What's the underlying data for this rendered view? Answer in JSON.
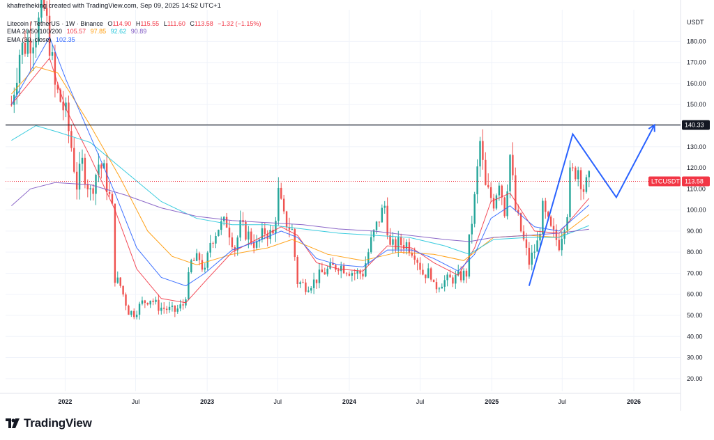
{
  "header": {
    "credit": "khafretheking created with TradingView.com, Sep 09, 2025 14:52 UTC+1",
    "symbol_line": "Litecoin / TetherUS · 1W · Binance",
    "o_label": "O",
    "o_value": "114.90",
    "h_label": "H",
    "h_value": "115.55",
    "l_label": "L",
    "l_value": "111.60",
    "c_label": "C",
    "c_value": "113.58",
    "change": "−1.32 (−1.15%)",
    "ema_label": "EMA 20/50/100/200",
    "ema_values": [
      "105.57",
      "97.85",
      "92.62",
      "90.89"
    ],
    "ema30_label": "EMA (30, close)",
    "ema30_value": "102.35"
  },
  "footer": {
    "brand": "TradingView"
  },
  "colors": {
    "up": "#26a69a",
    "down": "#ef5350",
    "ema20": "#f23645",
    "ema50": "#ff9800",
    "ema100": "#26c6da",
    "ema200": "#7e57c2",
    "ema30": "#2962ff",
    "projection": "#2962ff",
    "level": "#131722",
    "price_line": "#f23645"
  },
  "chart_data": {
    "type": "candlestick",
    "title": "Litecoin / TetherUS · 1W · Binance",
    "unit": "USDT",
    "y_axis_label": "USDT",
    "ylim": [
      14,
      195
    ],
    "y_ticks": [
      20,
      30,
      40,
      50,
      60,
      70,
      80,
      90,
      100,
      110,
      120,
      130,
      140,
      150,
      160,
      170,
      180
    ],
    "xlim": [
      "2021-08-01",
      "2026-05-01"
    ],
    "x_ticks": [
      {
        "label": "2022",
        "date": "2022-01-01"
      },
      {
        "label": "Jul",
        "date": "2022-07-01"
      },
      {
        "label": "2023",
        "date": "2023-01-01"
      },
      {
        "label": "Jul",
        "date": "2023-07-01"
      },
      {
        "label": "2024",
        "date": "2024-01-01"
      },
      {
        "label": "Jul",
        "date": "2024-07-01"
      },
      {
        "label": "2025",
        "date": "2025-01-01"
      },
      {
        "label": "Jul",
        "date": "2025-07-01"
      },
      {
        "label": "2026",
        "date": "2026-01-01"
      }
    ],
    "horizontal_level": {
      "value": 140.33,
      "label": "140.33"
    },
    "last_price": {
      "symbol": "LTCUSDT",
      "value": 113.58,
      "label": "113.58"
    },
    "price_anchors": [
      [
        "2021-08-16",
        150
      ],
      [
        "2021-09-06",
        175
      ],
      [
        "2021-10-18",
        185
      ],
      [
        "2021-11-08",
        195
      ],
      [
        "2021-11-22",
        180
      ],
      [
        "2021-12-06",
        158
      ],
      [
        "2021-12-20",
        152
      ],
      [
        "2022-01-03",
        145
      ],
      [
        "2022-01-17",
        130
      ],
      [
        "2022-01-31",
        112
      ],
      [
        "2022-02-14",
        122
      ],
      [
        "2022-03-07",
        108
      ],
      [
        "2022-03-28",
        122
      ],
      [
        "2022-04-11",
        118
      ],
      [
        "2022-05-02",
        100
      ],
      [
        "2022-05-09",
        68
      ],
      [
        "2022-05-23",
        64
      ],
      [
        "2022-06-13",
        52
      ],
      [
        "2022-06-27",
        51
      ],
      [
        "2022-07-18",
        56
      ],
      [
        "2022-08-08",
        58
      ],
      [
        "2022-08-29",
        54
      ],
      [
        "2022-09-19",
        53
      ],
      [
        "2022-10-10",
        52
      ],
      [
        "2022-10-31",
        55
      ],
      [
        "2022-11-07",
        60
      ],
      [
        "2022-11-21",
        75
      ],
      [
        "2022-12-12",
        77
      ],
      [
        "2022-12-26",
        70
      ],
      [
        "2023-01-09",
        85
      ],
      [
        "2023-01-30",
        92
      ],
      [
        "2023-02-20",
        94
      ],
      [
        "2023-03-13",
        82
      ],
      [
        "2023-03-27",
        92
      ],
      [
        "2023-04-17",
        88
      ],
      [
        "2023-05-08",
        83
      ],
      [
        "2023-05-29",
        90
      ],
      [
        "2023-06-19",
        88
      ],
      [
        "2023-07-03",
        108
      ],
      [
        "2023-07-17",
        96
      ],
      [
        "2023-08-07",
        90
      ],
      [
        "2023-08-21",
        66
      ],
      [
        "2023-09-11",
        64
      ],
      [
        "2023-10-02",
        66
      ],
      [
        "2023-10-23",
        70
      ],
      [
        "2023-11-13",
        72
      ],
      [
        "2023-12-04",
        74
      ],
      [
        "2023-12-25",
        72
      ],
      [
        "2024-01-15",
        70
      ],
      [
        "2024-02-05",
        70
      ],
      [
        "2024-02-26",
        85
      ],
      [
        "2024-03-18",
        96
      ],
      [
        "2024-04-01",
        102
      ],
      [
        "2024-04-15",
        82
      ],
      [
        "2024-05-06",
        84
      ],
      [
        "2024-05-27",
        84
      ],
      [
        "2024-06-17",
        80
      ],
      [
        "2024-07-08",
        70
      ],
      [
        "2024-07-29",
        70
      ],
      [
        "2024-08-05",
        63
      ],
      [
        "2024-08-26",
        66
      ],
      [
        "2024-09-16",
        67
      ],
      [
        "2024-10-07",
        68
      ],
      [
        "2024-10-28",
        70
      ],
      [
        "2024-11-04",
        85
      ],
      [
        "2024-11-18",
        105
      ],
      [
        "2024-12-02",
        132
      ],
      [
        "2024-12-16",
        110
      ],
      [
        "2025-01-06",
        104
      ],
      [
        "2025-01-20",
        115
      ],
      [
        "2025-02-03",
        100
      ],
      [
        "2025-02-17",
        126
      ],
      [
        "2025-03-03",
        100
      ],
      [
        "2025-03-17",
        90
      ],
      [
        "2025-04-07",
        75
      ],
      [
        "2025-04-28",
        84
      ],
      [
        "2025-05-12",
        100
      ],
      [
        "2025-06-02",
        90
      ],
      [
        "2025-06-23",
        84
      ],
      [
        "2025-07-14",
        100
      ],
      [
        "2025-07-21",
        116
      ],
      [
        "2025-08-11",
        120
      ],
      [
        "2025-08-25",
        110
      ],
      [
        "2025-09-08",
        113.58
      ]
    ],
    "series": [
      {
        "name": "EMA 20",
        "color_key": "ema20",
        "points": [
          [
            "2021-08-16",
            150
          ],
          [
            "2021-11-22",
            172
          ],
          [
            "2022-01-03",
            148
          ],
          [
            "2022-03-07",
            125
          ],
          [
            "2022-05-09",
            100
          ],
          [
            "2022-07-04",
            72
          ],
          [
            "2022-09-05",
            58
          ],
          [
            "2022-11-07",
            56
          ],
          [
            "2022-12-26",
            66
          ],
          [
            "2023-03-06",
            80
          ],
          [
            "2023-05-08",
            86
          ],
          [
            "2023-07-10",
            92
          ],
          [
            "2023-08-21",
            88
          ],
          [
            "2023-10-09",
            75
          ],
          [
            "2023-12-04",
            72
          ],
          [
            "2024-02-05",
            71
          ],
          [
            "2024-04-08",
            83
          ],
          [
            "2024-06-10",
            82
          ],
          [
            "2024-08-05",
            75
          ],
          [
            "2024-10-07",
            69
          ],
          [
            "2024-11-18",
            82
          ],
          [
            "2024-12-30",
            104
          ],
          [
            "2025-02-17",
            108
          ],
          [
            "2025-04-21",
            90
          ],
          [
            "2025-06-23",
            89
          ],
          [
            "2025-09-08",
            105.57
          ]
        ]
      },
      {
        "name": "EMA 50",
        "color_key": "ema50",
        "points": [
          [
            "2021-08-16",
            155
          ],
          [
            "2021-10-18",
            168
          ],
          [
            "2021-12-13",
            165
          ],
          [
            "2022-03-07",
            140
          ],
          [
            "2022-05-23",
            115
          ],
          [
            "2022-08-01",
            90
          ],
          [
            "2022-10-03",
            78
          ],
          [
            "2022-12-05",
            74
          ],
          [
            "2023-03-06",
            79
          ],
          [
            "2023-06-05",
            82
          ],
          [
            "2023-08-07",
            86
          ],
          [
            "2023-11-06",
            79
          ],
          [
            "2024-02-05",
            76
          ],
          [
            "2024-05-06",
            80
          ],
          [
            "2024-08-05",
            79
          ],
          [
            "2024-10-21",
            76
          ],
          [
            "2025-01-06",
            87
          ],
          [
            "2025-04-07",
            88
          ],
          [
            "2025-06-23",
            87
          ],
          [
            "2025-09-08",
            97.85
          ]
        ]
      },
      {
        "name": "EMA 100",
        "color_key": "ema100",
        "points": [
          [
            "2021-08-16",
            133
          ],
          [
            "2021-10-18",
            140
          ],
          [
            "2021-12-13",
            137
          ],
          [
            "2022-03-07",
            132
          ],
          [
            "2022-06-06",
            118
          ],
          [
            "2022-09-05",
            104
          ],
          [
            "2022-12-05",
            96
          ],
          [
            "2023-03-06",
            93
          ],
          [
            "2023-06-05",
            93
          ],
          [
            "2023-09-04",
            91
          ],
          [
            "2023-12-04",
            89
          ],
          [
            "2024-03-04",
            88
          ],
          [
            "2024-06-03",
            87
          ],
          [
            "2024-09-02",
            83
          ],
          [
            "2024-11-04",
            79
          ],
          [
            "2025-01-06",
            86
          ],
          [
            "2025-04-07",
            87
          ],
          [
            "2025-06-23",
            87
          ],
          [
            "2025-09-08",
            92.62
          ]
        ]
      },
      {
        "name": "EMA 200",
        "color_key": "ema200",
        "points": [
          [
            "2021-08-16",
            102
          ],
          [
            "2021-10-04",
            110
          ],
          [
            "2021-12-06",
            113
          ],
          [
            "2022-03-07",
            112
          ],
          [
            "2022-06-06",
            107
          ],
          [
            "2022-09-05",
            101
          ],
          [
            "2022-12-05",
            97
          ],
          [
            "2023-03-06",
            95
          ],
          [
            "2023-06-05",
            94
          ],
          [
            "2023-09-04",
            93
          ],
          [
            "2023-12-04",
            91
          ],
          [
            "2024-03-04",
            90
          ],
          [
            "2024-06-03",
            88
          ],
          [
            "2024-09-02",
            86
          ],
          [
            "2024-11-04",
            85
          ],
          [
            "2025-01-06",
            87
          ],
          [
            "2025-04-07",
            88
          ],
          [
            "2025-06-23",
            89
          ],
          [
            "2025-09-08",
            90.89
          ]
        ]
      },
      {
        "name": "EMA 30",
        "color_key": "ema30",
        "points": [
          [
            "2021-08-16",
            150
          ],
          [
            "2021-11-22",
            182
          ],
          [
            "2022-01-03",
            162
          ],
          [
            "2022-03-07",
            135
          ],
          [
            "2022-05-09",
            108
          ],
          [
            "2022-07-04",
            82
          ],
          [
            "2022-09-05",
            68
          ],
          [
            "2022-11-07",
            64
          ],
          [
            "2022-12-26",
            70
          ],
          [
            "2023-03-06",
            81
          ],
          [
            "2023-05-08",
            85
          ],
          [
            "2023-07-10",
            90
          ],
          [
            "2023-08-21",
            87
          ],
          [
            "2023-10-09",
            77
          ],
          [
            "2023-12-04",
            74
          ],
          [
            "2024-02-05",
            73
          ],
          [
            "2024-04-08",
            81
          ],
          [
            "2024-06-10",
            81
          ],
          [
            "2024-08-05",
            77
          ],
          [
            "2024-10-07",
            71
          ],
          [
            "2024-11-18",
            79
          ],
          [
            "2024-12-30",
            96
          ],
          [
            "2025-02-17",
            102
          ],
          [
            "2025-04-21",
            92
          ],
          [
            "2025-06-23",
            90
          ],
          [
            "2025-09-08",
            102.35
          ]
        ]
      }
    ],
    "projection": [
      [
        "2025-04-07",
        64
      ],
      [
        "2025-07-28",
        136
      ],
      [
        "2025-11-17",
        106
      ],
      [
        "2026-02-23",
        140.33
      ]
    ]
  }
}
